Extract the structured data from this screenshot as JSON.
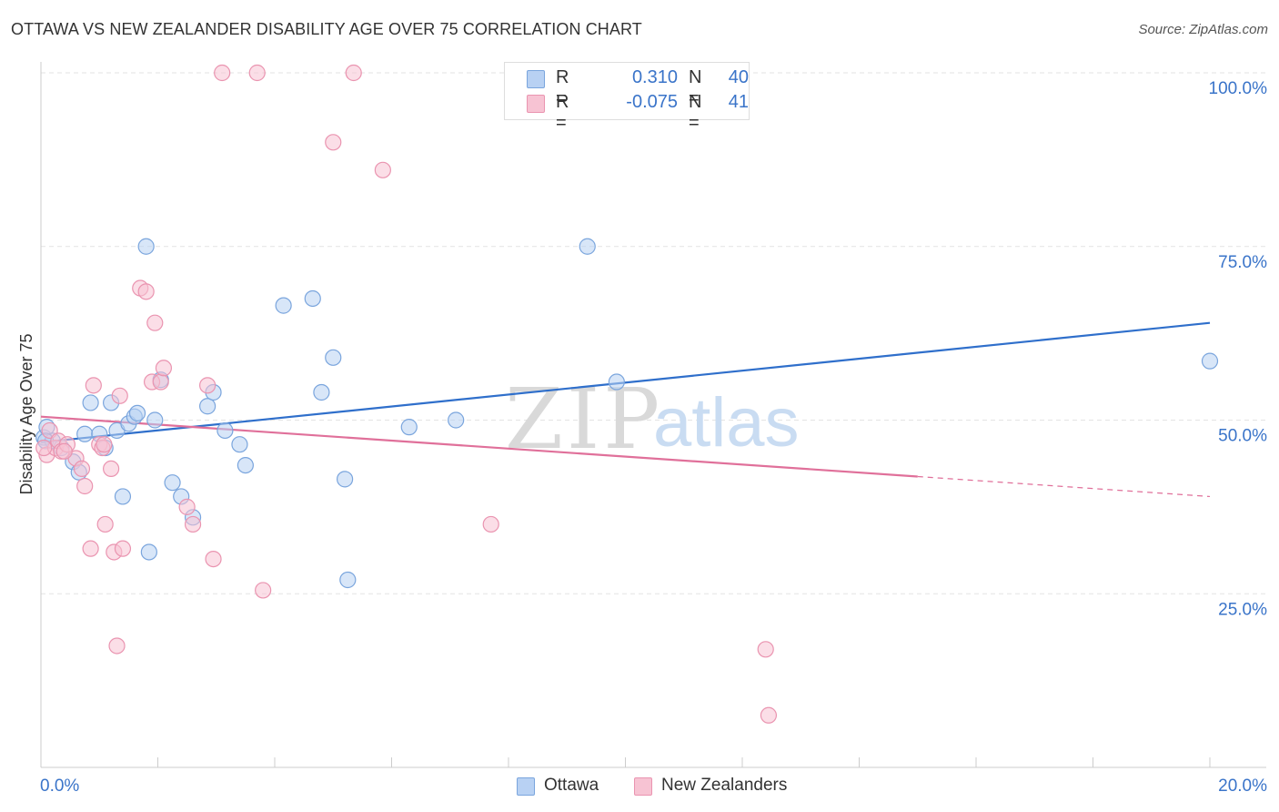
{
  "header": {
    "title": "OTTAWA VS NEW ZEALANDER DISABILITY AGE OVER 75 CORRELATION CHART",
    "source": "Source: ZipAtlas.com"
  },
  "legend": {
    "rows": [
      {
        "r_label": "R =",
        "r_value": "0.310",
        "n_label": "N =",
        "n_value": "40"
      },
      {
        "r_label": "R =",
        "r_value": "-0.075",
        "n_label": "N =",
        "n_value": "41"
      }
    ]
  },
  "watermark": {
    "zip": "ZIP",
    "atlas": "atlas"
  },
  "colors": {
    "ottawa_fill": "#b8d1f3",
    "ottawa_stroke": "#7aa5dd",
    "ottawa_line": "#2f6fcb",
    "nz_fill": "#f7c3d3",
    "nz_stroke": "#ea94b0",
    "nz_line": "#e0709a",
    "tick_label": "#3a74c9",
    "grid": "#e3e3e3"
  },
  "chart_data": {
    "type": "scatter",
    "title": "OTTAWA VS NEW ZEALANDER DISABILITY AGE OVER 75 CORRELATION CHART",
    "xlabel": "",
    "ylabel": "Disability Age Over 75",
    "xlim": [
      0,
      20
    ],
    "ylim": [
      0,
      100
    ],
    "x_tick_labels": [
      {
        "value": 0,
        "label": "0.0%"
      },
      {
        "value": 20,
        "label": "20.0%"
      }
    ],
    "y_tick_labels": [
      {
        "value": 25,
        "label": "25.0%"
      },
      {
        "value": 50,
        "label": "50.0%"
      },
      {
        "value": 75,
        "label": "75.0%"
      },
      {
        "value": 100,
        "label": "100.0%"
      }
    ],
    "series": [
      {
        "name": "Ottawa",
        "points": [
          [
            0.05,
            47.5
          ],
          [
            0.1,
            49.0
          ],
          [
            0.2,
            47.0
          ],
          [
            0.35,
            46.0
          ],
          [
            0.55,
            44.0
          ],
          [
            0.65,
            42.5
          ],
          [
            0.75,
            48.0
          ],
          [
            0.85,
            52.5
          ],
          [
            1.0,
            48.0
          ],
          [
            1.1,
            46.0
          ],
          [
            1.2,
            52.5
          ],
          [
            1.3,
            48.5
          ],
          [
            1.4,
            39.0
          ],
          [
            1.5,
            49.5
          ],
          [
            1.6,
            50.5
          ],
          [
            1.65,
            51.0
          ],
          [
            1.8,
            75.0
          ],
          [
            1.85,
            31.0
          ],
          [
            1.95,
            50.0
          ],
          [
            2.05,
            55.8
          ],
          [
            2.25,
            41.0
          ],
          [
            2.4,
            39.0
          ],
          [
            2.6,
            36.0
          ],
          [
            2.85,
            52.0
          ],
          [
            2.95,
            54.0
          ],
          [
            3.15,
            48.5
          ],
          [
            3.4,
            46.5
          ],
          [
            3.5,
            43.5
          ],
          [
            4.15,
            66.5
          ],
          [
            4.65,
            67.5
          ],
          [
            4.8,
            54.0
          ],
          [
            5.0,
            59.0
          ],
          [
            5.2,
            41.5
          ],
          [
            5.25,
            27.0
          ],
          [
            6.3,
            49.0
          ],
          [
            7.1,
            50.0
          ],
          [
            9.35,
            75.0
          ],
          [
            9.85,
            55.5
          ],
          [
            20.0,
            58.5
          ],
          [
            0.08,
            47.0
          ]
        ]
      },
      {
        "name": "New Zealanders",
        "points": [
          [
            0.1,
            45.0
          ],
          [
            0.15,
            48.5
          ],
          [
            0.25,
            46.0
          ],
          [
            0.3,
            47.0
          ],
          [
            0.35,
            45.5
          ],
          [
            0.45,
            46.5
          ],
          [
            0.6,
            44.5
          ],
          [
            0.7,
            43.0
          ],
          [
            0.75,
            40.5
          ],
          [
            0.85,
            31.5
          ],
          [
            0.9,
            55.0
          ],
          [
            1.0,
            46.5
          ],
          [
            1.05,
            46.0
          ],
          [
            1.1,
            35.0
          ],
          [
            1.2,
            43.0
          ],
          [
            1.25,
            31.0
          ],
          [
            1.3,
            17.5
          ],
          [
            1.35,
            53.5
          ],
          [
            1.4,
            31.5
          ],
          [
            1.7,
            69.0
          ],
          [
            1.8,
            68.5
          ],
          [
            1.9,
            55.5
          ],
          [
            1.95,
            64.0
          ],
          [
            2.05,
            55.5
          ],
          [
            2.1,
            57.5
          ],
          [
            2.5,
            37.5
          ],
          [
            2.6,
            35.0
          ],
          [
            2.85,
            55.0
          ],
          [
            2.95,
            30.0
          ],
          [
            3.1,
            100.0
          ],
          [
            3.7,
            100.0
          ],
          [
            3.8,
            25.5
          ],
          [
            5.0,
            90.0
          ],
          [
            5.35,
            100.0
          ],
          [
            5.85,
            86.0
          ],
          [
            7.7,
            35.0
          ],
          [
            12.4,
            17.0
          ],
          [
            12.45,
            7.5
          ],
          [
            0.05,
            46.0
          ],
          [
            1.08,
            46.5
          ],
          [
            0.4,
            45.5
          ]
        ]
      }
    ],
    "trend_lines": [
      {
        "series": "Ottawa",
        "x0": 0,
        "y0": 46.8,
        "x1": 20,
        "y1": 64.0,
        "dashed_from": null
      },
      {
        "series": "New Zealanders",
        "x0": 0,
        "y0": 50.5,
        "x1": 20,
        "y1": 39.0,
        "dashed_from": 15.0
      }
    ]
  },
  "bottom_legend": {
    "items": [
      "Ottawa",
      "New Zealanders"
    ]
  }
}
